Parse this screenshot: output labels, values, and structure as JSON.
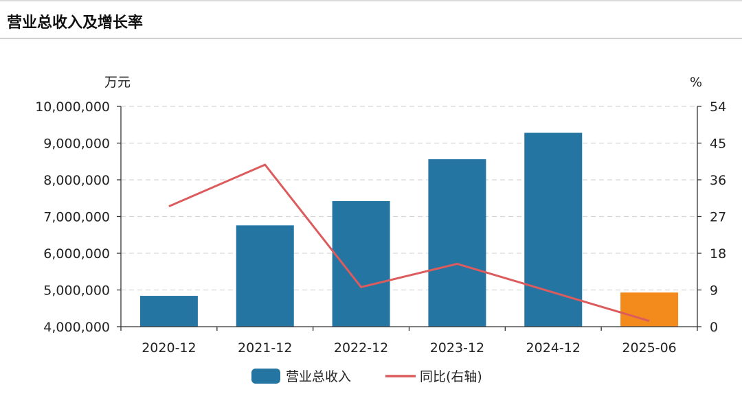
{
  "header": {
    "title": "营业总收入及增长率"
  },
  "chart_data": {
    "type": "bar",
    "title": "营业总收入及增长率",
    "categories": [
      "2020-12",
      "2021-12",
      "2022-12",
      "2023-12",
      "2024-12",
      "2025-06"
    ],
    "left_axis": {
      "unit": "万元",
      "ylim": [
        4000000,
        10000000
      ],
      "ticks": [
        4000000,
        5000000,
        6000000,
        7000000,
        8000000,
        9000000,
        10000000
      ],
      "tick_labels": [
        "4,000,000",
        "5,000,000",
        "6,000,000",
        "7,000,000",
        "8,000,000",
        "9,000,000",
        "10,000,000"
      ]
    },
    "right_axis": {
      "unit": "%",
      "ylim": [
        0,
        54
      ],
      "ticks": [
        0,
        9,
        18,
        27,
        36,
        45,
        54
      ],
      "tick_labels": [
        "0",
        "9",
        "18",
        "27",
        "36",
        "45",
        "54"
      ]
    },
    "series": [
      {
        "name": "营业总收入",
        "type": "bar",
        "axis": "left",
        "values": [
          4840000,
          6760000,
          7420000,
          8560000,
          9280000,
          4930000
        ],
        "colors": [
          "#2475a2",
          "#2475a2",
          "#2475a2",
          "#2475a2",
          "#2475a2",
          "#f38b1c"
        ]
      },
      {
        "name": "同比(右轴)",
        "type": "line",
        "axis": "right",
        "values": [
          29.5,
          39.7,
          9.7,
          15.4,
          8.4,
          1.4
        ],
        "color": "#dc5c5e"
      }
    ],
    "grid": true,
    "legend_position": "bottom"
  }
}
